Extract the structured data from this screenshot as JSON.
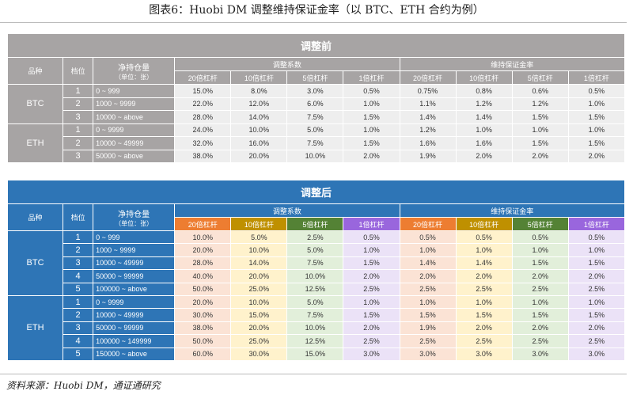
{
  "title": "图表6：Huobi DM 调整维持保证金率（以 BTC、ETH 合约为例）",
  "source": "资料来源：Huobi DM，通证通研究",
  "headers": {
    "variety": "品种",
    "tier": "档位",
    "position": "净持仓量",
    "unit": "（单位：张）",
    "coef": "调整系数",
    "mmr": "维持保证金率",
    "lev": [
      "20倍杠杆",
      "10倍杠杆",
      "5倍杠杆",
      "1倍杠杆"
    ]
  },
  "colors": {
    "before_header": "#a7a4a4",
    "after_header": "#2e75b6",
    "lev_headers": [
      "#ed7d31",
      "#bf9000",
      "#548235",
      "#9966dd"
    ],
    "lev_cells": [
      "#fbe3d5",
      "#fff2cc",
      "#e2efda",
      "#ebe2f7"
    ]
  },
  "before": {
    "caption": "调整前",
    "groups": [
      {
        "name": "BTC",
        "rows": [
          [
            "1",
            "0 ~ 999",
            "15.0%",
            "8.0%",
            "3.0%",
            "0.5%",
            "0.75%",
            "0.8%",
            "0.6%",
            "0.5%"
          ],
          [
            "2",
            "1000 ~ 9999",
            "22.0%",
            "12.0%",
            "6.0%",
            "1.0%",
            "1.1%",
            "1.2%",
            "1.2%",
            "1.0%"
          ],
          [
            "3",
            "10000 ~ above",
            "28.0%",
            "14.0%",
            "7.5%",
            "1.5%",
            "1.4%",
            "1.4%",
            "1.5%",
            "1.5%"
          ]
        ]
      },
      {
        "name": "ETH",
        "rows": [
          [
            "1",
            "0 ~ 9999",
            "24.0%",
            "10.0%",
            "5.0%",
            "1.0%",
            "1.2%",
            "1.0%",
            "1.0%",
            "1.0%"
          ],
          [
            "2",
            "10000 ~ 49999",
            "32.0%",
            "16.0%",
            "7.5%",
            "1.5%",
            "1.6%",
            "1.6%",
            "1.5%",
            "1.5%"
          ],
          [
            "3",
            "50000 ~ above",
            "38.0%",
            "20.0%",
            "10.0%",
            "2.0%",
            "1.9%",
            "2.0%",
            "2.0%",
            "2.0%"
          ]
        ]
      }
    ]
  },
  "after": {
    "caption": "调整后",
    "groups": [
      {
        "name": "BTC",
        "rows": [
          [
            "1",
            "0 ~ 999",
            "10.0%",
            "5.0%",
            "2.5%",
            "0.5%",
            "0.5%",
            "0.5%",
            "0.5%",
            "0.5%"
          ],
          [
            "2",
            "1000 ~ 9999",
            "20.0%",
            "10.0%",
            "5.0%",
            "1.0%",
            "1.0%",
            "1.0%",
            "1.0%",
            "1.0%"
          ],
          [
            "3",
            "10000 ~ 49999",
            "28.0%",
            "14.0%",
            "7.5%",
            "1.5%",
            "1.4%",
            "1.4%",
            "1.5%",
            "1.5%"
          ],
          [
            "4",
            "50000 ~ 99999",
            "40.0%",
            "20.0%",
            "10.0%",
            "2.0%",
            "2.0%",
            "2.0%",
            "2.0%",
            "2.0%"
          ],
          [
            "5",
            "100000 ~ above",
            "50.0%",
            "25.0%",
            "12.5%",
            "2.5%",
            "2.5%",
            "2.5%",
            "2.5%",
            "2.5%"
          ]
        ]
      },
      {
        "name": "ETH",
        "rows": [
          [
            "1",
            "0 ~ 9999",
            "20.0%",
            "10.0%",
            "5.0%",
            "1.0%",
            "1.0%",
            "1.0%",
            "1.0%",
            "1.0%"
          ],
          [
            "2",
            "10000 ~ 49999",
            "30.0%",
            "15.0%",
            "7.5%",
            "1.5%",
            "1.5%",
            "1.5%",
            "1.5%",
            "1.5%"
          ],
          [
            "3",
            "50000 ~ 99999",
            "38.0%",
            "20.0%",
            "10.0%",
            "2.0%",
            "1.9%",
            "2.0%",
            "2.0%",
            "2.0%"
          ],
          [
            "4",
            "100000 ~ 149999",
            "50.0%",
            "25.0%",
            "12.5%",
            "2.5%",
            "2.5%",
            "2.5%",
            "2.5%",
            "2.5%"
          ],
          [
            "5",
            "150000 ~ above",
            "60.0%",
            "30.0%",
            "15.0%",
            "3.0%",
            "3.0%",
            "3.0%",
            "3.0%",
            "3.0%"
          ]
        ]
      }
    ]
  }
}
